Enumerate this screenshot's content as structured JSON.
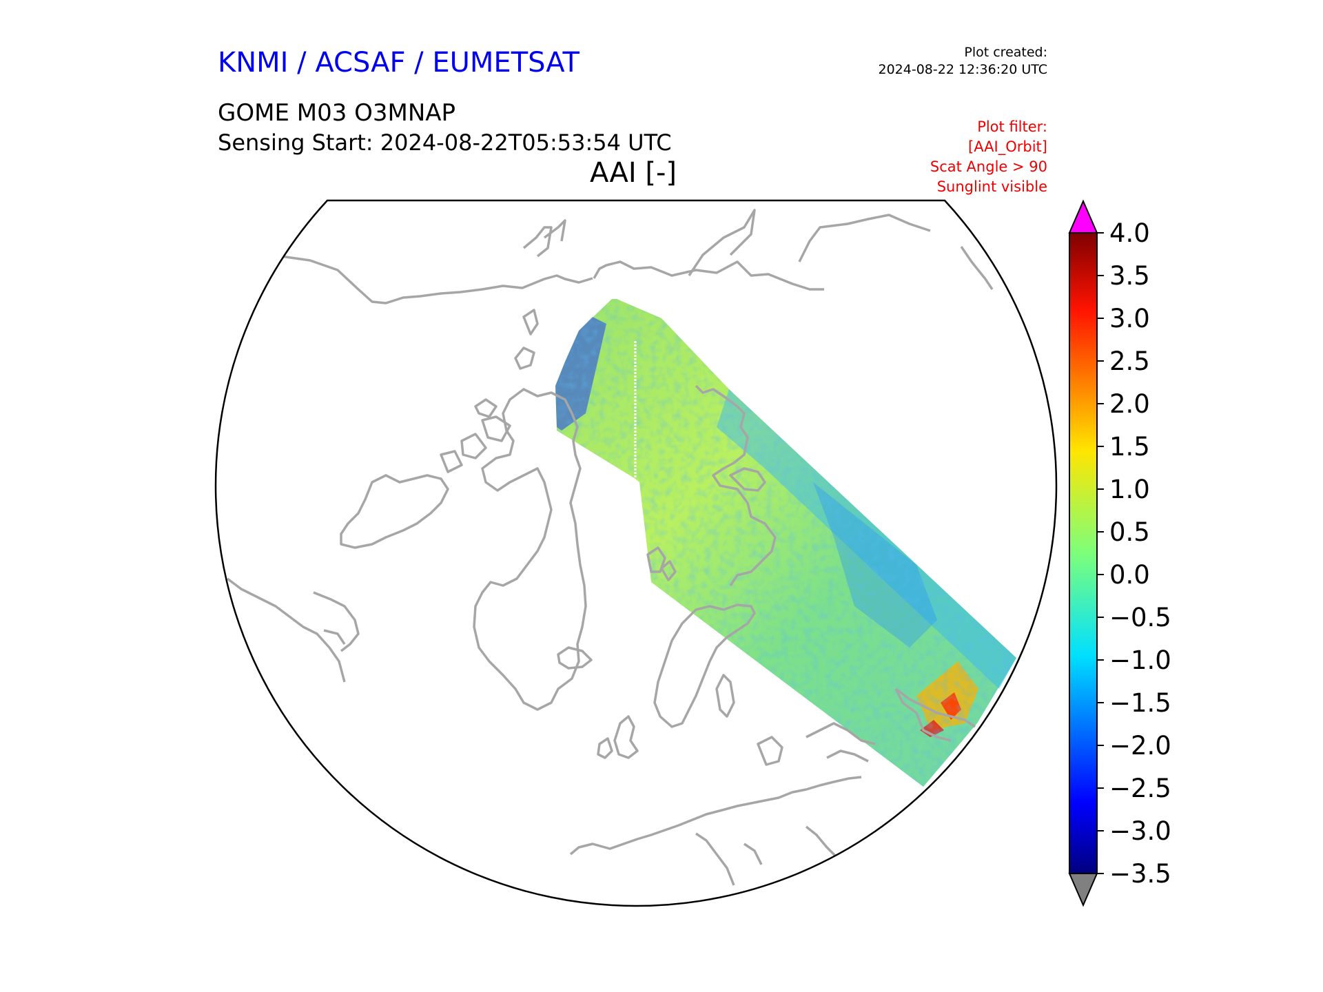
{
  "header": {
    "organization": "KNMI / ACSAF / EUMETSAT",
    "plot_created_label": "Plot created:",
    "plot_created_time": "2024-08-22 12:36:20 UTC",
    "product": "GOME M03 O3MNAP",
    "sensing_start": "Sensing Start: 2024-08-22T05:53:54 UTC",
    "variable": "AAI [-]"
  },
  "filter": {
    "title": "Plot filter:",
    "lines": [
      "[AAI_Orbit]",
      "Scat Angle > 90",
      "Sunglint visible"
    ]
  },
  "colorbar": {
    "min": -3.5,
    "max": 4.0,
    "ticks": [
      "4.0",
      "3.5",
      "3.0",
      "2.5",
      "2.0",
      "1.5",
      "1.0",
      "0.5",
      "0.0",
      "−0.5",
      "−1.0",
      "−1.5",
      "−2.0",
      "−2.5",
      "−3.0",
      "−3.5"
    ],
    "over_color": "#ff00ff",
    "under_color": "#808080",
    "colormap": "jet"
  },
  "map": {
    "projection": "north-polar-stereographic",
    "coastline_color": "#a6a6a6",
    "swath_background": "#7fe07a"
  }
}
